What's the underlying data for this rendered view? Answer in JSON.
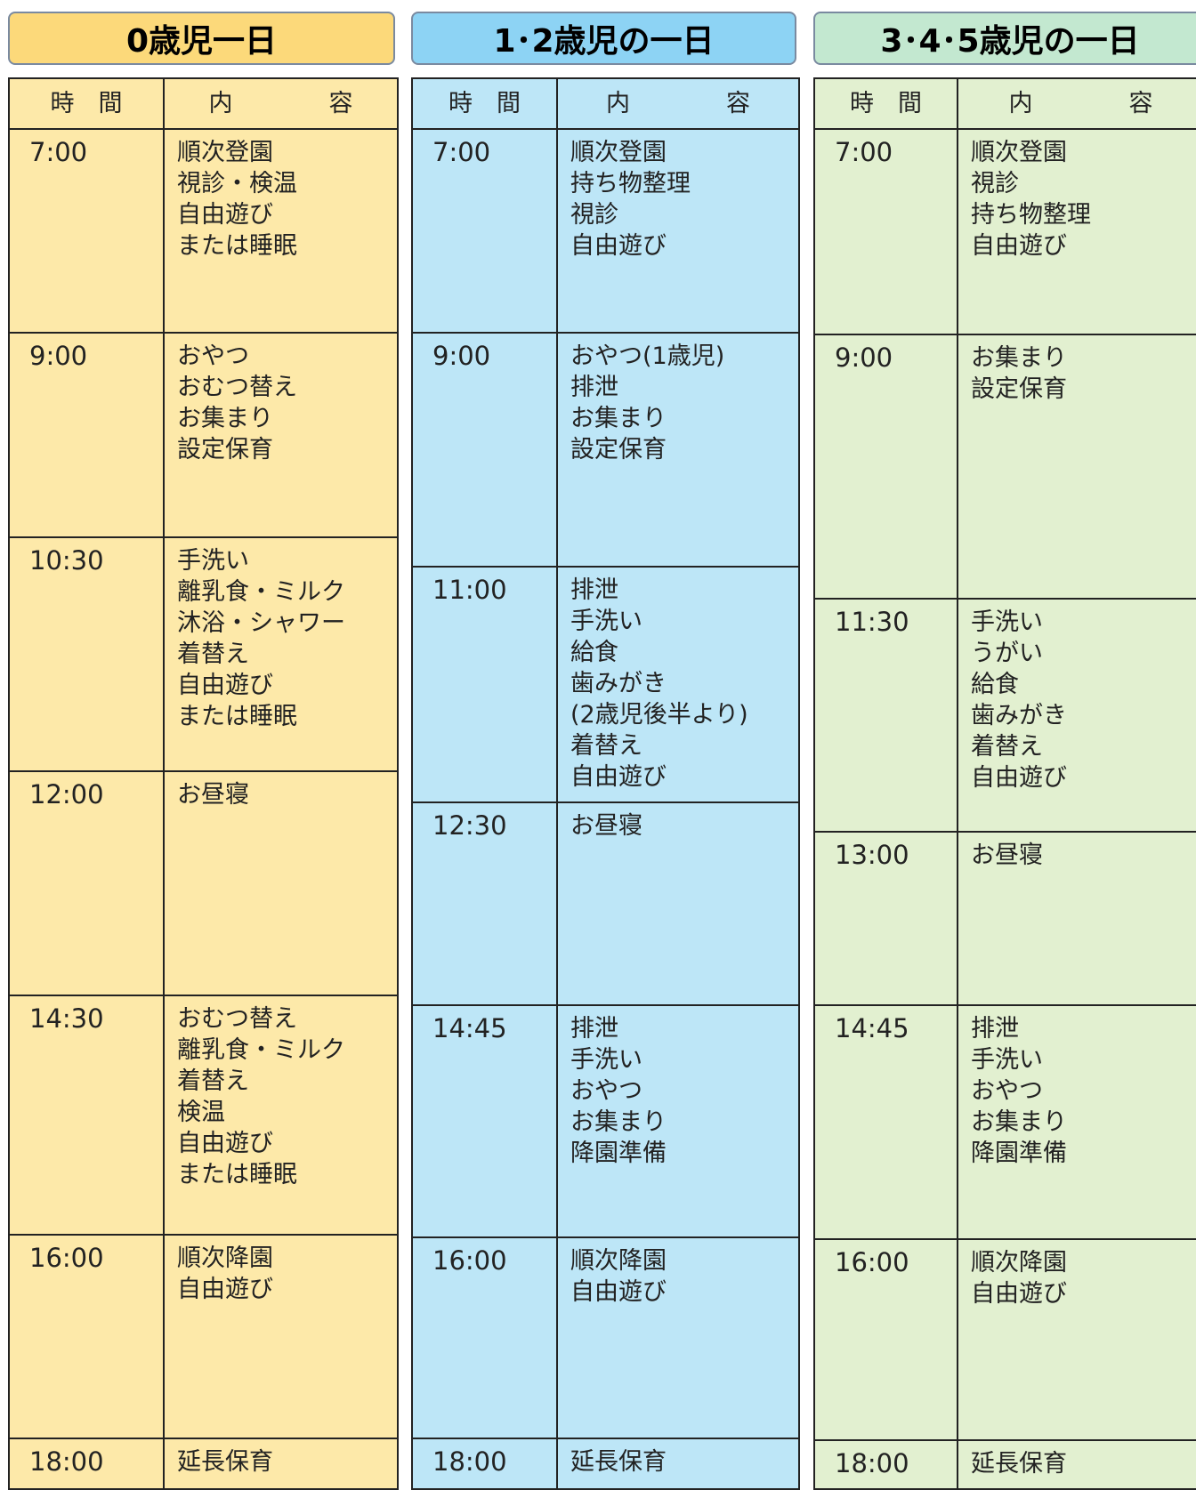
{
  "columns": [
    {
      "title": "0歳児一日",
      "header": {
        "time": "時　間",
        "content": "内　　　　容"
      },
      "rows": [
        {
          "time": "7:00",
          "items": [
            "順次登園",
            "視診・検温",
            "自由遊び",
            "または睡眠"
          ]
        },
        {
          "time": "9:00",
          "items": [
            "おやつ",
            "おむつ替え",
            "お集まり",
            "設定保育"
          ]
        },
        {
          "time": "10:30",
          "items": [
            "手洗い",
            "離乳食・ミルク",
            "沐浴・シャワー",
            "着替え",
            "自由遊び",
            "または睡眠"
          ]
        },
        {
          "time": "12:00",
          "items": [
            "お昼寝"
          ]
        },
        {
          "time": "14:30",
          "items": [
            "おむつ替え",
            "離乳食・ミルク",
            "着替え",
            "検温",
            "自由遊び",
            "または睡眠"
          ]
        },
        {
          "time": "16:00",
          "items": [
            "順次降園",
            "自由遊び"
          ]
        },
        {
          "time": "18:00",
          "items": [
            "延長保育"
          ]
        }
      ]
    },
    {
      "title": "1･2歳児の一日",
      "header": {
        "time": "時　間",
        "content": "内　　　　容"
      },
      "rows": [
        {
          "time": "7:00",
          "items": [
            "順次登園",
            "持ち物整理",
            "視診",
            "自由遊び"
          ]
        },
        {
          "time": "9:00",
          "items": [
            "おやつ(1歳児)",
            "排泄",
            "お集まり",
            "設定保育"
          ]
        },
        {
          "time": "11:00",
          "items": [
            "排泄",
            "手洗い",
            "給食",
            "歯みがき",
            "(2歳児後半より)",
            "着替え",
            "自由遊び"
          ]
        },
        {
          "time": "12:30",
          "items": [
            "お昼寝"
          ]
        },
        {
          "time": "14:45",
          "items": [
            "排泄",
            "手洗い",
            "おやつ",
            "お集まり",
            "降園準備"
          ]
        },
        {
          "time": "16:00",
          "items": [
            "順次降園",
            "自由遊び"
          ]
        },
        {
          "time": "18:00",
          "items": [
            "延長保育"
          ]
        }
      ]
    },
    {
      "title": "3･4･5歳児の一日",
      "header": {
        "time": "時　間",
        "content": "内　　　　容"
      },
      "rows": [
        {
          "time": "7:00",
          "items": [
            "順次登園",
            "視診",
            "持ち物整理",
            "自由遊び"
          ]
        },
        {
          "time": "9:00",
          "items": [
            "お集まり",
            "設定保育"
          ]
        },
        {
          "time": "11:30",
          "items": [
            "手洗い",
            "うがい",
            "給食",
            "歯みがき",
            "着替え",
            "自由遊び"
          ]
        },
        {
          "time": "13:00",
          "items": [
            "お昼寝"
          ]
        },
        {
          "time": "14:45",
          "items": [
            "排泄",
            "手洗い",
            "おやつ",
            "お集まり",
            "降園準備"
          ]
        },
        {
          "time": "16:00",
          "items": [
            "順次降園",
            "自由遊び"
          ]
        },
        {
          "time": "18:00",
          "items": [
            "延長保育"
          ]
        }
      ]
    }
  ]
}
